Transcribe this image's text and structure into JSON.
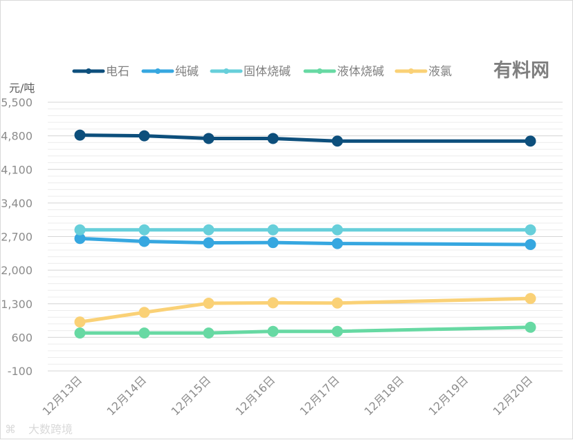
{
  "chart_data": {
    "type": "line",
    "title": "",
    "xlabel": "",
    "ylabel": "元/吨",
    "categories": [
      "12月13日",
      "12月14日",
      "12月15日",
      "12月16日",
      "12月17日",
      "12月18日",
      "12月19日",
      "12月20日"
    ],
    "ylim": [
      -100,
      5500
    ],
    "yticks": [
      "-100",
      "600",
      "1,300",
      "2,000",
      "2,700",
      "3,400",
      "4,100",
      "4,800",
      "5,500"
    ],
    "grid": true,
    "legend_position": "top",
    "series": [
      {
        "name": "电石",
        "color": "#0d4f7c",
        "x": [
          "12月13日",
          "12月14日",
          "12月15日",
          "12月16日",
          "12月17日",
          "12月20日"
        ],
        "values": [
          4815,
          4800,
          4745,
          4745,
          4690,
          4690
        ]
      },
      {
        "name": "纯碱",
        "color": "#36a7e0",
        "x": [
          "12月13日",
          "12月14日",
          "12月15日",
          "12月16日",
          "12月17日",
          "12月20日"
        ],
        "values": [
          2660,
          2600,
          2570,
          2575,
          2555,
          2535
        ]
      },
      {
        "name": "固体烧碱",
        "color": "#67cfda",
        "x": [
          "12月13日",
          "12月14日",
          "12月15日",
          "12月16日",
          "12月17日",
          "12月20日"
        ],
        "values": [
          2840,
          2840,
          2840,
          2840,
          2840,
          2840
        ]
      },
      {
        "name": "液体烧碱",
        "color": "#67d9a3",
        "x": [
          "12月13日",
          "12月14日",
          "12月15日",
          "12月16日",
          "12月17日",
          "12月20日"
        ],
        "values": [
          690,
          690,
          690,
          725,
          725,
          810
        ]
      },
      {
        "name": "液氯",
        "color": "#fad176",
        "x": [
          "12月13日",
          "12月14日",
          "12月15日",
          "12月16日",
          "12月17日",
          "12月20日"
        ],
        "values": [
          920,
          1120,
          1310,
          1320,
          1315,
          1410
        ]
      }
    ]
  },
  "brand": "有料网",
  "watermark": "大数跨境"
}
